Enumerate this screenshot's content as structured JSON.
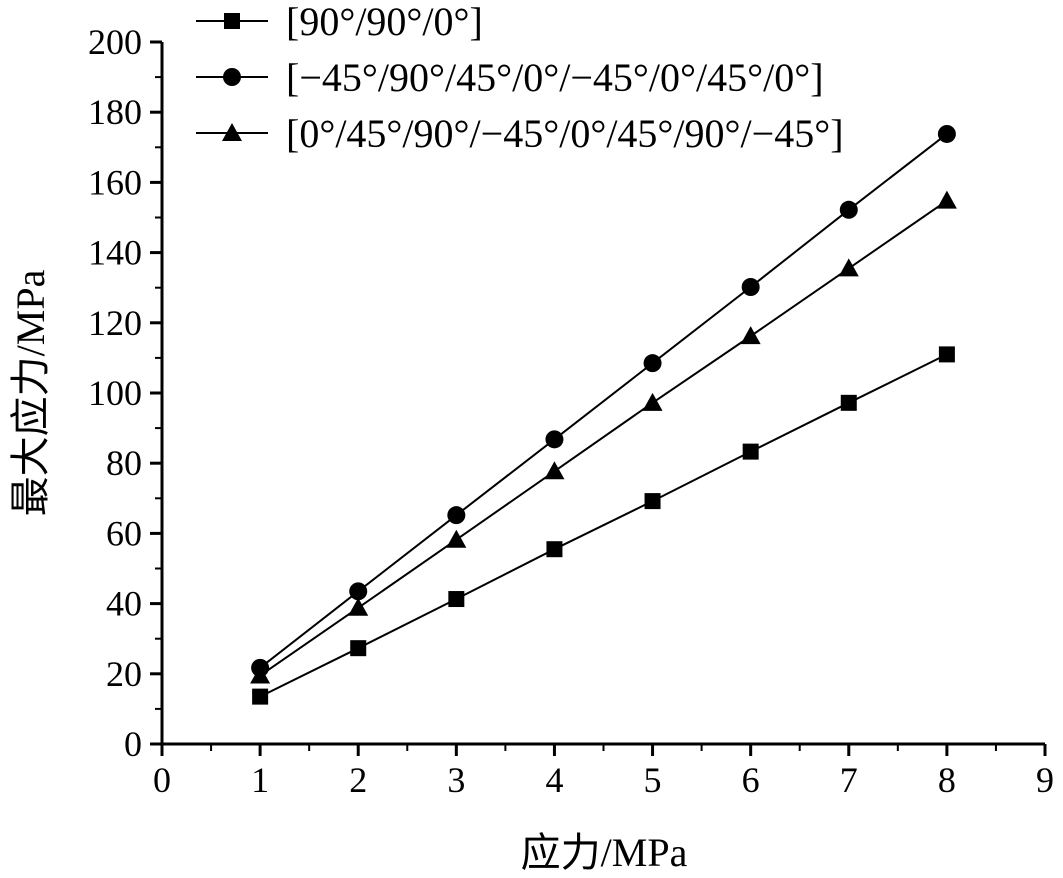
{
  "chart_data": {
    "type": "line",
    "title": "",
    "xlabel": "应力/MPa",
    "ylabel": "最大应力/MPa",
    "xlim": [
      0,
      9
    ],
    "ylim": [
      0,
      200
    ],
    "xticks": [
      "0",
      "1",
      "2",
      "3",
      "4",
      "5",
      "6",
      "7",
      "8",
      "9"
    ],
    "yticks": [
      "0",
      "20",
      "40",
      "60",
      "80",
      "100",
      "120",
      "140",
      "160",
      "180",
      "200"
    ],
    "x": [
      1,
      2,
      3,
      4,
      5,
      6,
      7,
      8
    ],
    "legend_position": "top-left",
    "grid": false,
    "series": [
      {
        "name": "[90°/90°/0°]",
        "marker": "square",
        "values": [
          13.5,
          27.3,
          41.3,
          55.5,
          69.2,
          83.3,
          97.2,
          111.0
        ]
      },
      {
        "name": "[−45°/90°/45°/0°/−45°/0°/45°/0°]",
        "marker": "circle",
        "values": [
          21.7,
          43.5,
          65.2,
          86.8,
          108.5,
          130.2,
          152.2,
          173.8
        ]
      },
      {
        "name": "[0°/45°/90°/−45°/0°/45°/90°/−45°]",
        "marker": "triangle",
        "values": [
          19.5,
          38.8,
          58.2,
          77.7,
          97.2,
          116.2,
          135.5,
          154.8
        ]
      }
    ]
  }
}
